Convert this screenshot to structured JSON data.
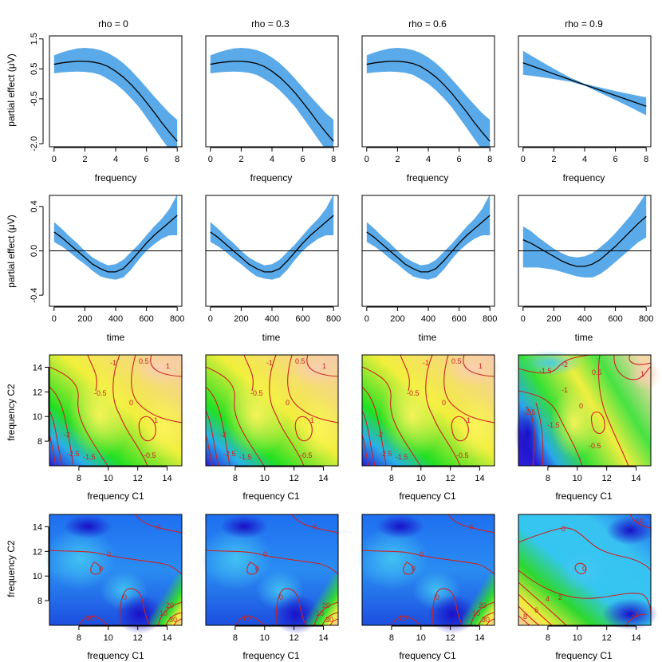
{
  "panel_titles": [
    "rho = 0",
    "rho = 0.3",
    "rho = 0.6",
    "rho = 0.9"
  ],
  "row_labels": {
    "row1_ylabel": "partial effect (μV)",
    "row2_ylabel": "partial effect (μV)",
    "row3_ylabel": "frequency C2",
    "row4_ylabel": "frequency C2",
    "row1_xlabel": "frequency",
    "row2_xlabel": "time",
    "row3_xlabel": "frequency C1",
    "row4_xlabel": "frequency C1"
  },
  "colors": {
    "band": "#5aaaea",
    "line": "#000000",
    "contour": "#cc2222"
  },
  "chart_data": [
    {
      "type": "line",
      "row": "frequency smooth",
      "xlabel": "frequency",
      "ylabel": "partial effect (μV)",
      "xlim": [
        -0.3,
        8.3
      ],
      "ylim": [
        -2.1,
        1.6
      ],
      "xticks": [
        0,
        2,
        4,
        6,
        8
      ],
      "yticks": [
        1.5,
        0.5,
        -0.5,
        -2.0
      ],
      "ytick_labels": [
        "1.5",
        "0.5",
        "-0.5",
        "-2.0"
      ],
      "series": [
        {
          "panel": "rho = 0",
          "x": [
            0,
            0.5,
            1,
            1.5,
            2,
            2.5,
            3,
            3.5,
            4,
            4.5,
            5,
            5.5,
            6,
            6.5,
            7,
            7.5,
            8
          ],
          "fit": [
            0.65,
            0.7,
            0.73,
            0.75,
            0.75,
            0.73,
            0.68,
            0.58,
            0.42,
            0.22,
            -0.02,
            -0.3,
            -0.62,
            -0.95,
            -1.3,
            -1.62,
            -1.92
          ],
          "upper": [
            0.95,
            1.05,
            1.12,
            1.18,
            1.2,
            1.18,
            1.13,
            1.03,
            0.88,
            0.69,
            0.45,
            0.17,
            -0.12,
            -0.42,
            -0.7,
            -0.98,
            -1.2
          ],
          "lower": [
            0.35,
            0.38,
            0.4,
            0.41,
            0.4,
            0.37,
            0.3,
            0.16,
            0.0,
            -0.22,
            -0.48,
            -0.77,
            -1.12,
            -1.48,
            -1.85,
            -2.2,
            -2.6
          ]
        },
        {
          "panel": "rho = 0.3",
          "x": [
            0,
            0.5,
            1,
            1.5,
            2,
            2.5,
            3,
            3.5,
            4,
            4.5,
            5,
            5.5,
            6,
            6.5,
            7,
            7.5,
            8
          ],
          "fit": [
            0.65,
            0.7,
            0.73,
            0.75,
            0.75,
            0.73,
            0.68,
            0.58,
            0.42,
            0.22,
            -0.02,
            -0.3,
            -0.62,
            -0.95,
            -1.3,
            -1.62,
            -1.92
          ],
          "upper": [
            0.95,
            1.05,
            1.12,
            1.18,
            1.2,
            1.18,
            1.13,
            1.03,
            0.88,
            0.69,
            0.45,
            0.17,
            -0.12,
            -0.42,
            -0.7,
            -0.98,
            -1.2
          ],
          "lower": [
            0.35,
            0.38,
            0.4,
            0.41,
            0.4,
            0.37,
            0.3,
            0.16,
            0.0,
            -0.22,
            -0.48,
            -0.77,
            -1.12,
            -1.48,
            -1.85,
            -2.2,
            -2.6
          ]
        },
        {
          "panel": "rho = 0.6",
          "x": [
            0,
            0.5,
            1,
            1.5,
            2,
            2.5,
            3,
            3.5,
            4,
            4.5,
            5,
            5.5,
            6,
            6.5,
            7,
            7.5,
            8
          ],
          "fit": [
            0.65,
            0.7,
            0.73,
            0.75,
            0.75,
            0.73,
            0.68,
            0.58,
            0.42,
            0.22,
            -0.02,
            -0.3,
            -0.62,
            -0.95,
            -1.3,
            -1.62,
            -1.92
          ],
          "upper": [
            0.95,
            1.05,
            1.12,
            1.18,
            1.2,
            1.18,
            1.13,
            1.03,
            0.88,
            0.69,
            0.45,
            0.17,
            -0.12,
            -0.42,
            -0.7,
            -0.98,
            -1.2
          ],
          "lower": [
            0.35,
            0.38,
            0.4,
            0.41,
            0.4,
            0.37,
            0.3,
            0.16,
            0.0,
            -0.22,
            -0.48,
            -0.77,
            -1.12,
            -1.48,
            -1.85,
            -2.2,
            -2.6
          ]
        },
        {
          "panel": "rho = 0.9",
          "x": [
            0,
            1,
            2,
            3,
            4,
            5,
            6,
            7,
            8
          ],
          "fit": [
            0.7,
            0.52,
            0.33,
            0.15,
            -0.03,
            -0.21,
            -0.39,
            -0.57,
            -0.75
          ],
          "upper": [
            1.1,
            0.8,
            0.5,
            0.22,
            0.0,
            -0.12,
            -0.24,
            -0.35,
            -0.45
          ],
          "lower": [
            0.3,
            0.24,
            0.16,
            0.08,
            -0.06,
            -0.3,
            -0.54,
            -0.79,
            -1.05
          ]
        }
      ]
    },
    {
      "type": "line",
      "row": "time smooth",
      "xlabel": "time",
      "ylabel": "partial effect (μV)",
      "xlim": [
        -30,
        830
      ],
      "ylim": [
        -0.5,
        0.5
      ],
      "xticks": [
        0,
        200,
        400,
        600,
        800
      ],
      "yticks": [
        0.4,
        0.0,
        -0.4
      ],
      "ytick_labels": [
        "0.4",
        "0.0",
        "-0.4"
      ],
      "hline": 0,
      "series": [
        {
          "panel": "rho = 0",
          "x": [
            0,
            50,
            100,
            150,
            200,
            250,
            300,
            350,
            400,
            450,
            500,
            550,
            600,
            650,
            700,
            750,
            800
          ],
          "fit": [
            0.17,
            0.12,
            0.06,
            0.0,
            -0.06,
            -0.12,
            -0.16,
            -0.19,
            -0.19,
            -0.16,
            -0.09,
            -0.01,
            0.07,
            0.14,
            0.2,
            0.26,
            0.32
          ],
          "upper": [
            0.26,
            0.2,
            0.13,
            0.07,
            0.0,
            -0.06,
            -0.1,
            -0.13,
            -0.12,
            -0.08,
            -0.01,
            0.06,
            0.14,
            0.22,
            0.29,
            0.38,
            0.51
          ],
          "lower": [
            0.08,
            0.04,
            -0.01,
            -0.07,
            -0.12,
            -0.18,
            -0.23,
            -0.25,
            -0.26,
            -0.24,
            -0.17,
            -0.08,
            0.0,
            0.06,
            0.11,
            0.14,
            0.14
          ]
        },
        {
          "panel": "rho = 0.3",
          "x": [
            0,
            50,
            100,
            150,
            200,
            250,
            300,
            350,
            400,
            450,
            500,
            550,
            600,
            650,
            700,
            750,
            800
          ],
          "fit": [
            0.17,
            0.12,
            0.06,
            0.0,
            -0.06,
            -0.12,
            -0.16,
            -0.19,
            -0.19,
            -0.16,
            -0.09,
            -0.01,
            0.07,
            0.14,
            0.2,
            0.26,
            0.32
          ],
          "upper": [
            0.26,
            0.2,
            0.13,
            0.07,
            0.0,
            -0.06,
            -0.1,
            -0.13,
            -0.12,
            -0.08,
            -0.01,
            0.06,
            0.14,
            0.22,
            0.29,
            0.38,
            0.51
          ],
          "lower": [
            0.08,
            0.04,
            -0.01,
            -0.07,
            -0.12,
            -0.18,
            -0.23,
            -0.25,
            -0.26,
            -0.24,
            -0.17,
            -0.08,
            0.0,
            0.06,
            0.11,
            0.14,
            0.14
          ]
        },
        {
          "panel": "rho = 0.6",
          "x": [
            0,
            50,
            100,
            150,
            200,
            250,
            300,
            350,
            400,
            450,
            500,
            550,
            600,
            650,
            700,
            750,
            800
          ],
          "fit": [
            0.17,
            0.12,
            0.06,
            0.0,
            -0.06,
            -0.12,
            -0.16,
            -0.19,
            -0.19,
            -0.16,
            -0.09,
            -0.01,
            0.07,
            0.14,
            0.2,
            0.26,
            0.32
          ],
          "upper": [
            0.26,
            0.2,
            0.13,
            0.07,
            0.0,
            -0.06,
            -0.1,
            -0.13,
            -0.12,
            -0.08,
            -0.01,
            0.06,
            0.14,
            0.22,
            0.29,
            0.38,
            0.51
          ],
          "lower": [
            0.08,
            0.04,
            -0.01,
            -0.07,
            -0.12,
            -0.18,
            -0.23,
            -0.25,
            -0.26,
            -0.24,
            -0.17,
            -0.08,
            0.0,
            0.06,
            0.11,
            0.14,
            0.14
          ]
        },
        {
          "panel": "rho = 0.9",
          "x": [
            0,
            50,
            100,
            150,
            200,
            250,
            300,
            350,
            400,
            450,
            500,
            550,
            600,
            650,
            700,
            750,
            800
          ],
          "fit": [
            0.1,
            0.07,
            0.03,
            -0.01,
            -0.05,
            -0.09,
            -0.12,
            -0.14,
            -0.14,
            -0.12,
            -0.08,
            -0.02,
            0.04,
            0.11,
            0.18,
            0.25,
            0.31
          ],
          "upper": [
            0.22,
            0.18,
            0.12,
            0.07,
            0.02,
            -0.02,
            -0.05,
            -0.06,
            -0.05,
            -0.02,
            0.03,
            0.09,
            0.16,
            0.24,
            0.32,
            0.42,
            0.52
          ],
          "lower": [
            -0.15,
            -0.15,
            -0.15,
            -0.16,
            -0.17,
            -0.19,
            -0.21,
            -0.23,
            -0.24,
            -0.24,
            -0.21,
            -0.16,
            -0.1,
            -0.04,
            0.02,
            0.08,
            0.12
          ]
        }
      ]
    },
    {
      "type": "heatmap",
      "row": "tensor smooth (frequency C1 x frequency C2)",
      "xlabel": "frequency C1",
      "ylabel": "frequency C2",
      "xlim": [
        6,
        15
      ],
      "ylim": [
        6,
        15
      ],
      "xticks": [
        8,
        10,
        12,
        14
      ],
      "yticks": [
        8,
        10,
        12,
        14
      ],
      "palette": "topo (blue→green→yellow→peach)",
      "contour_labels": [
        {
          "panel": "rho = 0",
          "labels": [
            "-1",
            "0.5",
            "1",
            "-0.5",
            "0",
            "-1",
            "-2",
            "-1.5",
            "-0.5",
            "-2.5"
          ]
        },
        {
          "panel": "rho = 0.3",
          "labels": [
            "-1",
            "0.5",
            "1",
            "-0.5",
            "0",
            "-1",
            "-2",
            "-1.5",
            "-0.5",
            "-2.5"
          ]
        },
        {
          "panel": "rho = 0.6",
          "labels": [
            "-1",
            "0.5",
            "1",
            "-0.5",
            "0",
            "-1",
            "-2",
            "-1.5",
            "-0.5",
            "-2.5"
          ]
        },
        {
          "panel": "rho = 0.9",
          "labels": [
            "-2",
            "-1.5",
            "0.5",
            "-1",
            "0",
            "-1.5",
            "-0.5",
            "1",
            "-2.5"
          ]
        }
      ]
    },
    {
      "type": "heatmap",
      "row": "tensor smooth (frequency C1 x frequency C2)",
      "xlabel": "frequency C1",
      "ylabel": "frequency C2",
      "xlim": [
        6,
        15
      ],
      "ylim": [
        6,
        15
      ],
      "xticks": [
        8,
        10,
        12,
        14
      ],
      "yticks": [
        8,
        10,
        12,
        14
      ],
      "palette": "topo (blue→green→yellow→peach)",
      "contour_labels": [
        {
          "panel": "rho = 0",
          "labels": [
            "0",
            "0",
            "0",
            "0",
            "10",
            "10",
            "20",
            "30"
          ]
        },
        {
          "panel": "rho = 0.3",
          "labels": [
            "0",
            "0",
            "0",
            "0",
            "10",
            "10",
            "20",
            "30"
          ]
        },
        {
          "panel": "rho = 0.6",
          "labels": [
            "0",
            "0",
            "0",
            "0",
            "10",
            "10",
            "20",
            "30"
          ]
        },
        {
          "panel": "rho = 0.9",
          "labels": [
            "0",
            "-10",
            "0",
            "2",
            "4",
            "6",
            "8",
            "-2"
          ]
        }
      ]
    }
  ]
}
